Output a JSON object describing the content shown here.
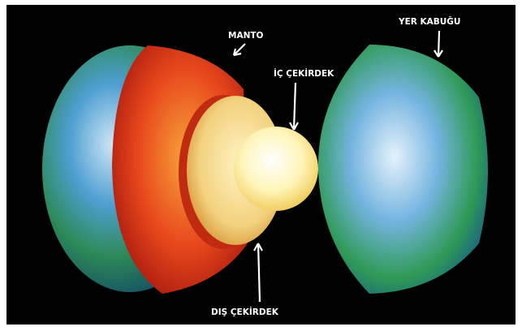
{
  "labels": [
    "MANTO",
    "İÇ ÇEKİRDEK",
    "YER KABUĞU",
    "DIŞ ÇEKİRDEK"
  ]
}
